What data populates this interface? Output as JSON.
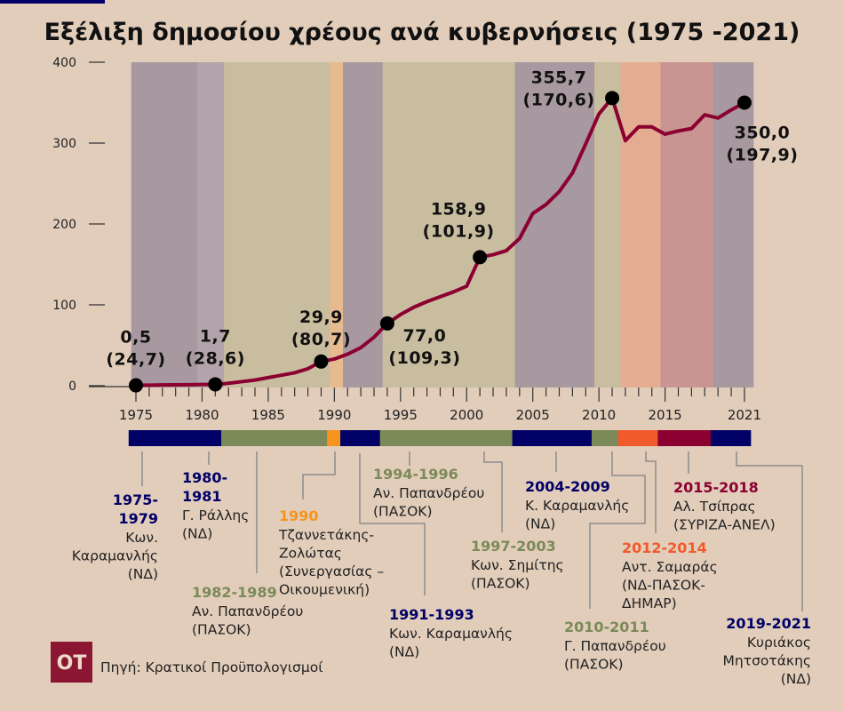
{
  "chart_data": {
    "type": "line",
    "title": "Εξέλιξη δημοσίου χρέους ανά κυβερνήσεις (1975 -2021)",
    "xlabel": "",
    "ylabel": "",
    "ylim": [
      0,
      400
    ],
    "xlim": [
      1975,
      2021
    ],
    "y_ticks": [
      "400",
      "300",
      "200",
      "100",
      "0"
    ],
    "y_tick_values": [
      400,
      300,
      200,
      100,
      0
    ],
    "x_ticks": [
      "1975",
      "1980",
      "1985",
      "1990",
      "1995",
      "2000",
      "2005",
      "2010",
      "2015",
      "2021"
    ],
    "x_tick_values": [
      1975,
      1980,
      1985,
      1990,
      1995,
      2000,
      2005,
      2010,
      2015,
      2021
    ],
    "line_color": "#8b0030",
    "series": [
      {
        "name": "Δημόσιο χρέος",
        "x": [
          1975,
          1976,
          1977,
          1978,
          1979,
          1980,
          1981,
          1982,
          1983,
          1984,
          1985,
          1986,
          1987,
          1988,
          1989,
          1990,
          1991,
          1992,
          1993,
          1994,
          1995,
          1996,
          1997,
          1998,
          1999,
          2000,
          2001,
          2002,
          2003,
          2004,
          2005,
          2006,
          2007,
          2008,
          2009,
          2010,
          2011,
          2012,
          2013,
          2014,
          2015,
          2016,
          2017,
          2018,
          2019,
          2020,
          2021
        ],
        "values": [
          0.5,
          0.7,
          0.9,
          1.1,
          1.3,
          1.5,
          1.7,
          3,
          5,
          7,
          10,
          13,
          16,
          21,
          29.9,
          33,
          39,
          47,
          60,
          77.0,
          88,
          97,
          104,
          110,
          116,
          123,
          158.9,
          162,
          167,
          182,
          213,
          224,
          240,
          263,
          299,
          336,
          355.7,
          303,
          320,
          320,
          311,
          315,
          318,
          335,
          331,
          341,
          350.0
        ]
      }
    ],
    "annotations": [
      {
        "year": 1975,
        "value": "0,5",
        "pct": "(24,7)"
      },
      {
        "year": 1981,
        "value": "1,7",
        "pct": "(28,6)"
      },
      {
        "year": 1989,
        "value": "29,9",
        "pct": "(80,7)"
      },
      {
        "year": 1994,
        "value": "77,0",
        "pct": "(109,3)"
      },
      {
        "year": 2001,
        "value": "158,9",
        "pct": "(101,9)"
      },
      {
        "year": 2011,
        "value": "355,7",
        "pct": "(170,6)"
      },
      {
        "year": 2021,
        "value": "350,0",
        "pct": "(197,9)"
      }
    ],
    "periods": [
      {
        "start": 1975,
        "end": 1979,
        "years": [
          "1975-",
          "1979"
        ],
        "lines": [
          "Κων.",
          "Καραμανλής",
          "(ΝΔ)"
        ],
        "color": "#000066",
        "band": "#a8989f"
      },
      {
        "start": 1980,
        "end": 1981,
        "years": [
          "1980-",
          "1981"
        ],
        "lines": [
          "Γ. Ράλλης",
          "(ΝΔ)"
        ],
        "color": "#000066",
        "band": "#b3a3ab"
      },
      {
        "start": 1982,
        "end": 1989,
        "years": [
          "1982-1989"
        ],
        "lines": [
          "Αν. Παπανδρέου",
          "(ΠΑΣΟΚ)"
        ],
        "color": "#7b8a58",
        "band": "#c8bd9f"
      },
      {
        "start": 1990,
        "end": 1990,
        "years": [
          "1990"
        ],
        "lines": [
          "Τζαννετάκης-",
          "Ζολώτας",
          "(Συνεργασίας –",
          "Οικουμενική)"
        ],
        "color": "#f7941d",
        "band": "#e6bb8f"
      },
      {
        "start": 1991,
        "end": 1993,
        "years": [
          "1991-1993"
        ],
        "lines": [
          "Κων. Καραμανλής",
          "(ΝΔ)"
        ],
        "color": "#000066",
        "band": "#a8989f"
      },
      {
        "start": 1994,
        "end": 1996,
        "years": [
          "1994-1996"
        ],
        "lines": [
          "Αν. Παπανδρέου",
          "(ΠΑΣΟΚ)"
        ],
        "color": "#7b8a58",
        "band": "#c8bd9f"
      },
      {
        "start": 1997,
        "end": 2003,
        "years": [
          "1997-2003"
        ],
        "lines": [
          "Κων. Σημίτης",
          "(ΠΑΣΟΚ)"
        ],
        "color": "#7b8a58",
        "band": "#c8bd9f"
      },
      {
        "start": 2004,
        "end": 2009,
        "years": [
          "2004-2009"
        ],
        "lines": [
          "Κ. Καραμανλής",
          "(ΝΔ)"
        ],
        "color": "#000066",
        "band": "#a8989f"
      },
      {
        "start": 2010,
        "end": 2011,
        "years": [
          "2010-2011"
        ],
        "lines": [
          "Γ. Παπανδρέου",
          "(ΠΑΣΟΚ)"
        ],
        "color": "#7b8a58",
        "band": "#c8bd9f"
      },
      {
        "start": 2012,
        "end": 2014,
        "years": [
          "2012-2014"
        ],
        "lines": [
          "Αντ. Σαμαράς",
          "(ΝΔ-ΠΑΣΟΚ-",
          "ΔΗΜΑΡ)"
        ],
        "color": "#f15a2b",
        "band": "#e4ac90"
      },
      {
        "start": 2015,
        "end": 2018,
        "years": [
          "2015-2018"
        ],
        "lines": [
          "Αλ. Τσίπρας",
          "(ΣΥΡΙΖΑ-ΑΝΕΛ)"
        ],
        "color": "#8b0030",
        "band": "#c99592"
      },
      {
        "start": 2019,
        "end": 2021,
        "years": [
          "2019-2021"
        ],
        "lines": [
          "Κυριάκος",
          "Μητσοτάκης",
          "(ΝΔ)"
        ],
        "color": "#000066",
        "band": "#a8989f"
      }
    ]
  },
  "footer": {
    "logo_text": "OT",
    "logo_color": "#8b1632",
    "source": "Πηγή: Κρατικοί Προϋπολογισμοί"
  },
  "colors": {
    "background": "#e2cdbb",
    "accent_bar": "#000066"
  }
}
